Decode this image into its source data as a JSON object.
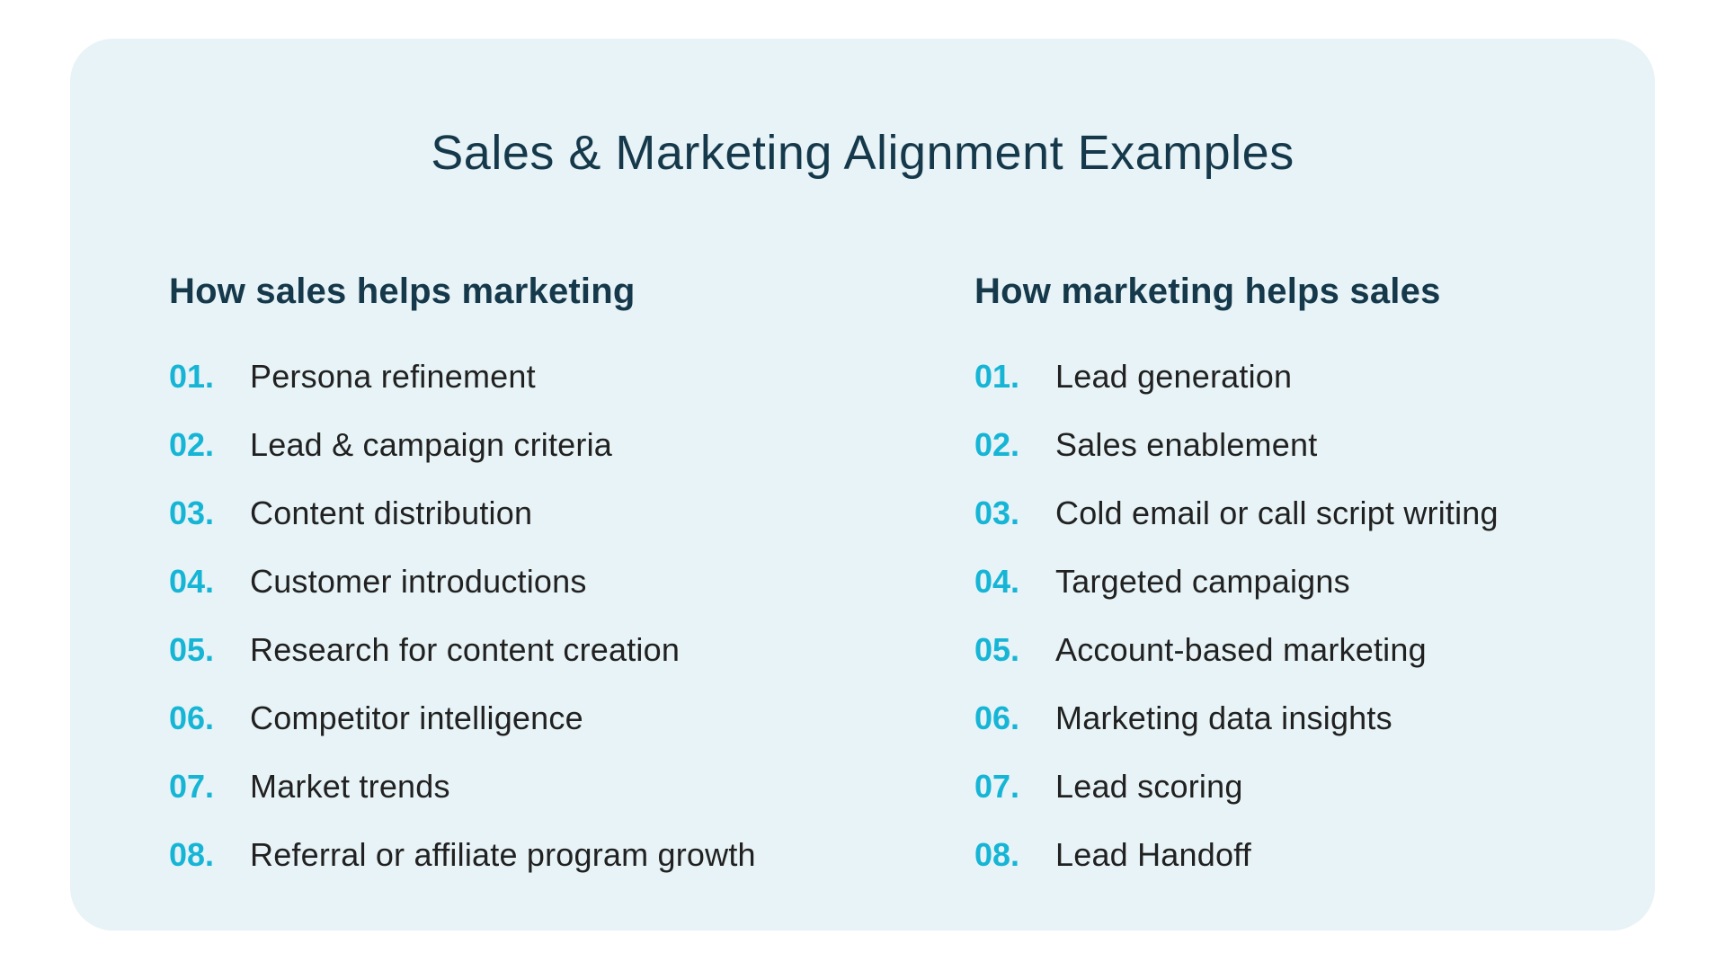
{
  "card": {
    "title": "Sales & Marketing Alignment Examples",
    "colors": {
      "card_background": "#E7F3F6",
      "heading_navy": "#15394B",
      "number_cyan": "#16B5D6",
      "item_text": "#212121",
      "page_background": "#ffffff"
    },
    "columns": [
      {
        "heading": "How sales helps marketing",
        "items": [
          {
            "number": "01.",
            "label": "Persona refinement"
          },
          {
            "number": "02.",
            "label": "Lead & campaign criteria"
          },
          {
            "number": "03.",
            "label": "Content distribution"
          },
          {
            "number": "04.",
            "label": "Customer introductions"
          },
          {
            "number": "05.",
            "label": "Research for content creation"
          },
          {
            "number": "06.",
            "label": "Competitor intelligence"
          },
          {
            "number": "07.",
            "label": "Market trends"
          },
          {
            "number": "08.",
            "label": "Referral or affiliate program growth"
          }
        ]
      },
      {
        "heading": "How marketing helps sales",
        "items": [
          {
            "number": "01.",
            "label": "Lead generation"
          },
          {
            "number": "02.",
            "label": "Sales enablement"
          },
          {
            "number": "03.",
            "label": "Cold email or call script writing"
          },
          {
            "number": "04.",
            "label": "Targeted campaigns"
          },
          {
            "number": "05.",
            "label": "Account-based marketing"
          },
          {
            "number": "06.",
            "label": "Marketing data insights"
          },
          {
            "number": "07.",
            "label": "Lead scoring"
          },
          {
            "number": "08.",
            "label": "Lead Handoff"
          }
        ]
      }
    ]
  }
}
